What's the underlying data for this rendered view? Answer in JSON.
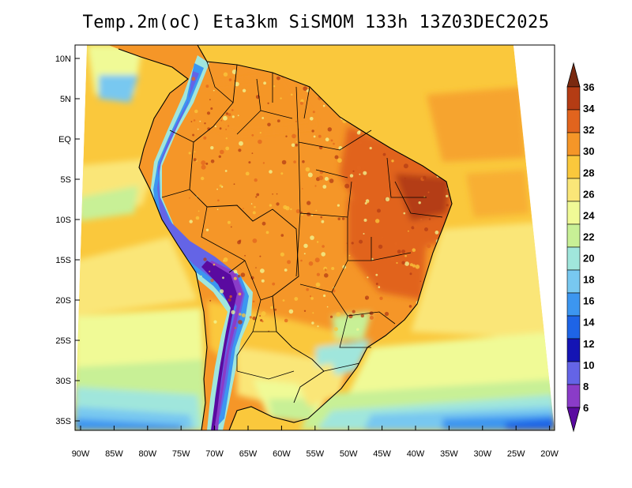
{
  "title": "Temp.2m(oC) Eta3km SiSMOM 133h 13Z03DEC2025",
  "lat_labels": [
    "10N",
    "5N",
    "EQ",
    "5S",
    "10S",
    "15S",
    "20S",
    "25S",
    "30S",
    "35S"
  ],
  "lon_labels": [
    "90W",
    "85W",
    "80W",
    "75W",
    "70W",
    "65W",
    "60W",
    "55W",
    "50W",
    "45W",
    "40W",
    "35W",
    "30W",
    "25W",
    "20W"
  ],
  "colorbar": {
    "labels": [
      "6",
      "8",
      "10",
      "12",
      "14",
      "16",
      "18",
      "20",
      "22",
      "24",
      "26",
      "28",
      "30",
      "32",
      "34",
      "36"
    ],
    "colors": [
      "#5a0aa0",
      "#8a3cc8",
      "#6464e6",
      "#1414b4",
      "#1e64e6",
      "#3c96f0",
      "#78c8f0",
      "#a0e6dc",
      "#c8f096",
      "#f0fa96",
      "#fae678",
      "#fac83c",
      "#f59628",
      "#e1641e",
      "#b43c14",
      "#7a2a10"
    ]
  },
  "chart_data": {
    "type": "heatmap",
    "title": "Temp.2m(oC) Eta3km SiSMOM 133h 13Z03DEC2025",
    "variable": "Temp.2m (oC)",
    "x_ticks": [
      "90W",
      "85W",
      "80W",
      "75W",
      "70W",
      "65W",
      "60W",
      "55W",
      "50W",
      "45W",
      "40W",
      "35W",
      "30W",
      "25W",
      "20W"
    ],
    "y_ticks": [
      "10N",
      "5N",
      "EQ",
      "5S",
      "10S",
      "15S",
      "20S",
      "25S",
      "30S",
      "35S"
    ],
    "colorbar_range": [
      6,
      36
    ],
    "colorbar_step": 2
  }
}
